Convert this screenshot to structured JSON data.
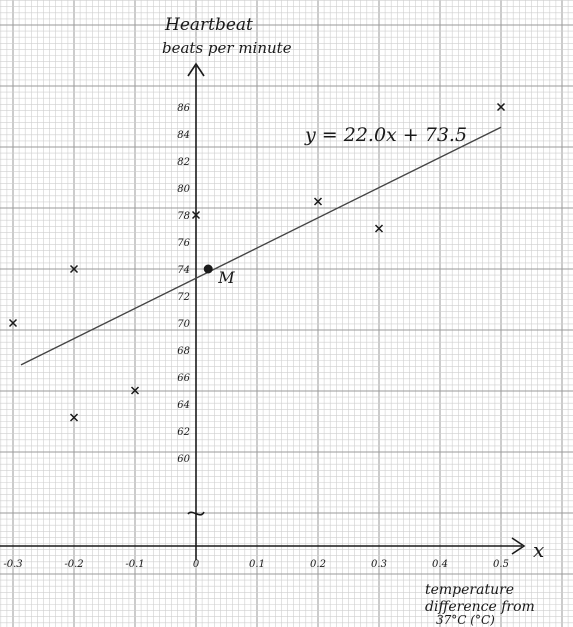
{
  "chart_data": {
    "type": "scatter",
    "title": "",
    "ylabel_lines": [
      "Heartbeat",
      "beats per minute"
    ],
    "xlabel_lines": [
      "temperature",
      "difference from",
      "37°C (°C)"
    ],
    "x_axis_symbol": "x",
    "x_ticks": [
      {
        "value": -0.3,
        "label": "-0.3"
      },
      {
        "value": -0.2,
        "label": "-0.2"
      },
      {
        "value": -0.1,
        "label": "-0.1"
      },
      {
        "value": 0,
        "label": "0"
      },
      {
        "value": 0.1,
        "label": "0.1"
      },
      {
        "value": 0.2,
        "label": "0.2"
      },
      {
        "value": 0.3,
        "label": "0.3"
      },
      {
        "value": 0.4,
        "label": "0.4"
      },
      {
        "value": 0.5,
        "label": "0.5"
      }
    ],
    "y_ticks": [
      60,
      62,
      64,
      66,
      68,
      70,
      72,
      74,
      76,
      78,
      80,
      82,
      84,
      86
    ],
    "xlim": [
      -0.3,
      0.5
    ],
    "ylim": [
      60,
      86
    ],
    "axis_break": true,
    "grid": true,
    "series": [
      {
        "points": [
          {
            "x": -0.3,
            "y": 70
          },
          {
            "x": -0.2,
            "y": 74
          },
          {
            "x": -0.2,
            "y": 63
          },
          {
            "x": -0.1,
            "y": 65
          },
          {
            "x": 0.0,
            "y": 78
          },
          {
            "x": 0.2,
            "y": 79
          },
          {
            "x": 0.3,
            "y": 77
          },
          {
            "x": 0.5,
            "y": 86
          }
        ]
      }
    ],
    "mean_point": {
      "label": "M",
      "x": 0.02,
      "y": 74
    },
    "best_fit": {
      "equation": "y = 22.0x + 73.5",
      "slope": 22.0,
      "intercept": 73.5,
      "x_range": [
        -0.3,
        0.5
      ]
    }
  },
  "colors": {
    "grid_major": "#9a9a9a",
    "grid_minor": "#cfcfcf",
    "ink": "#1a1a1a",
    "line": "#444444"
  }
}
